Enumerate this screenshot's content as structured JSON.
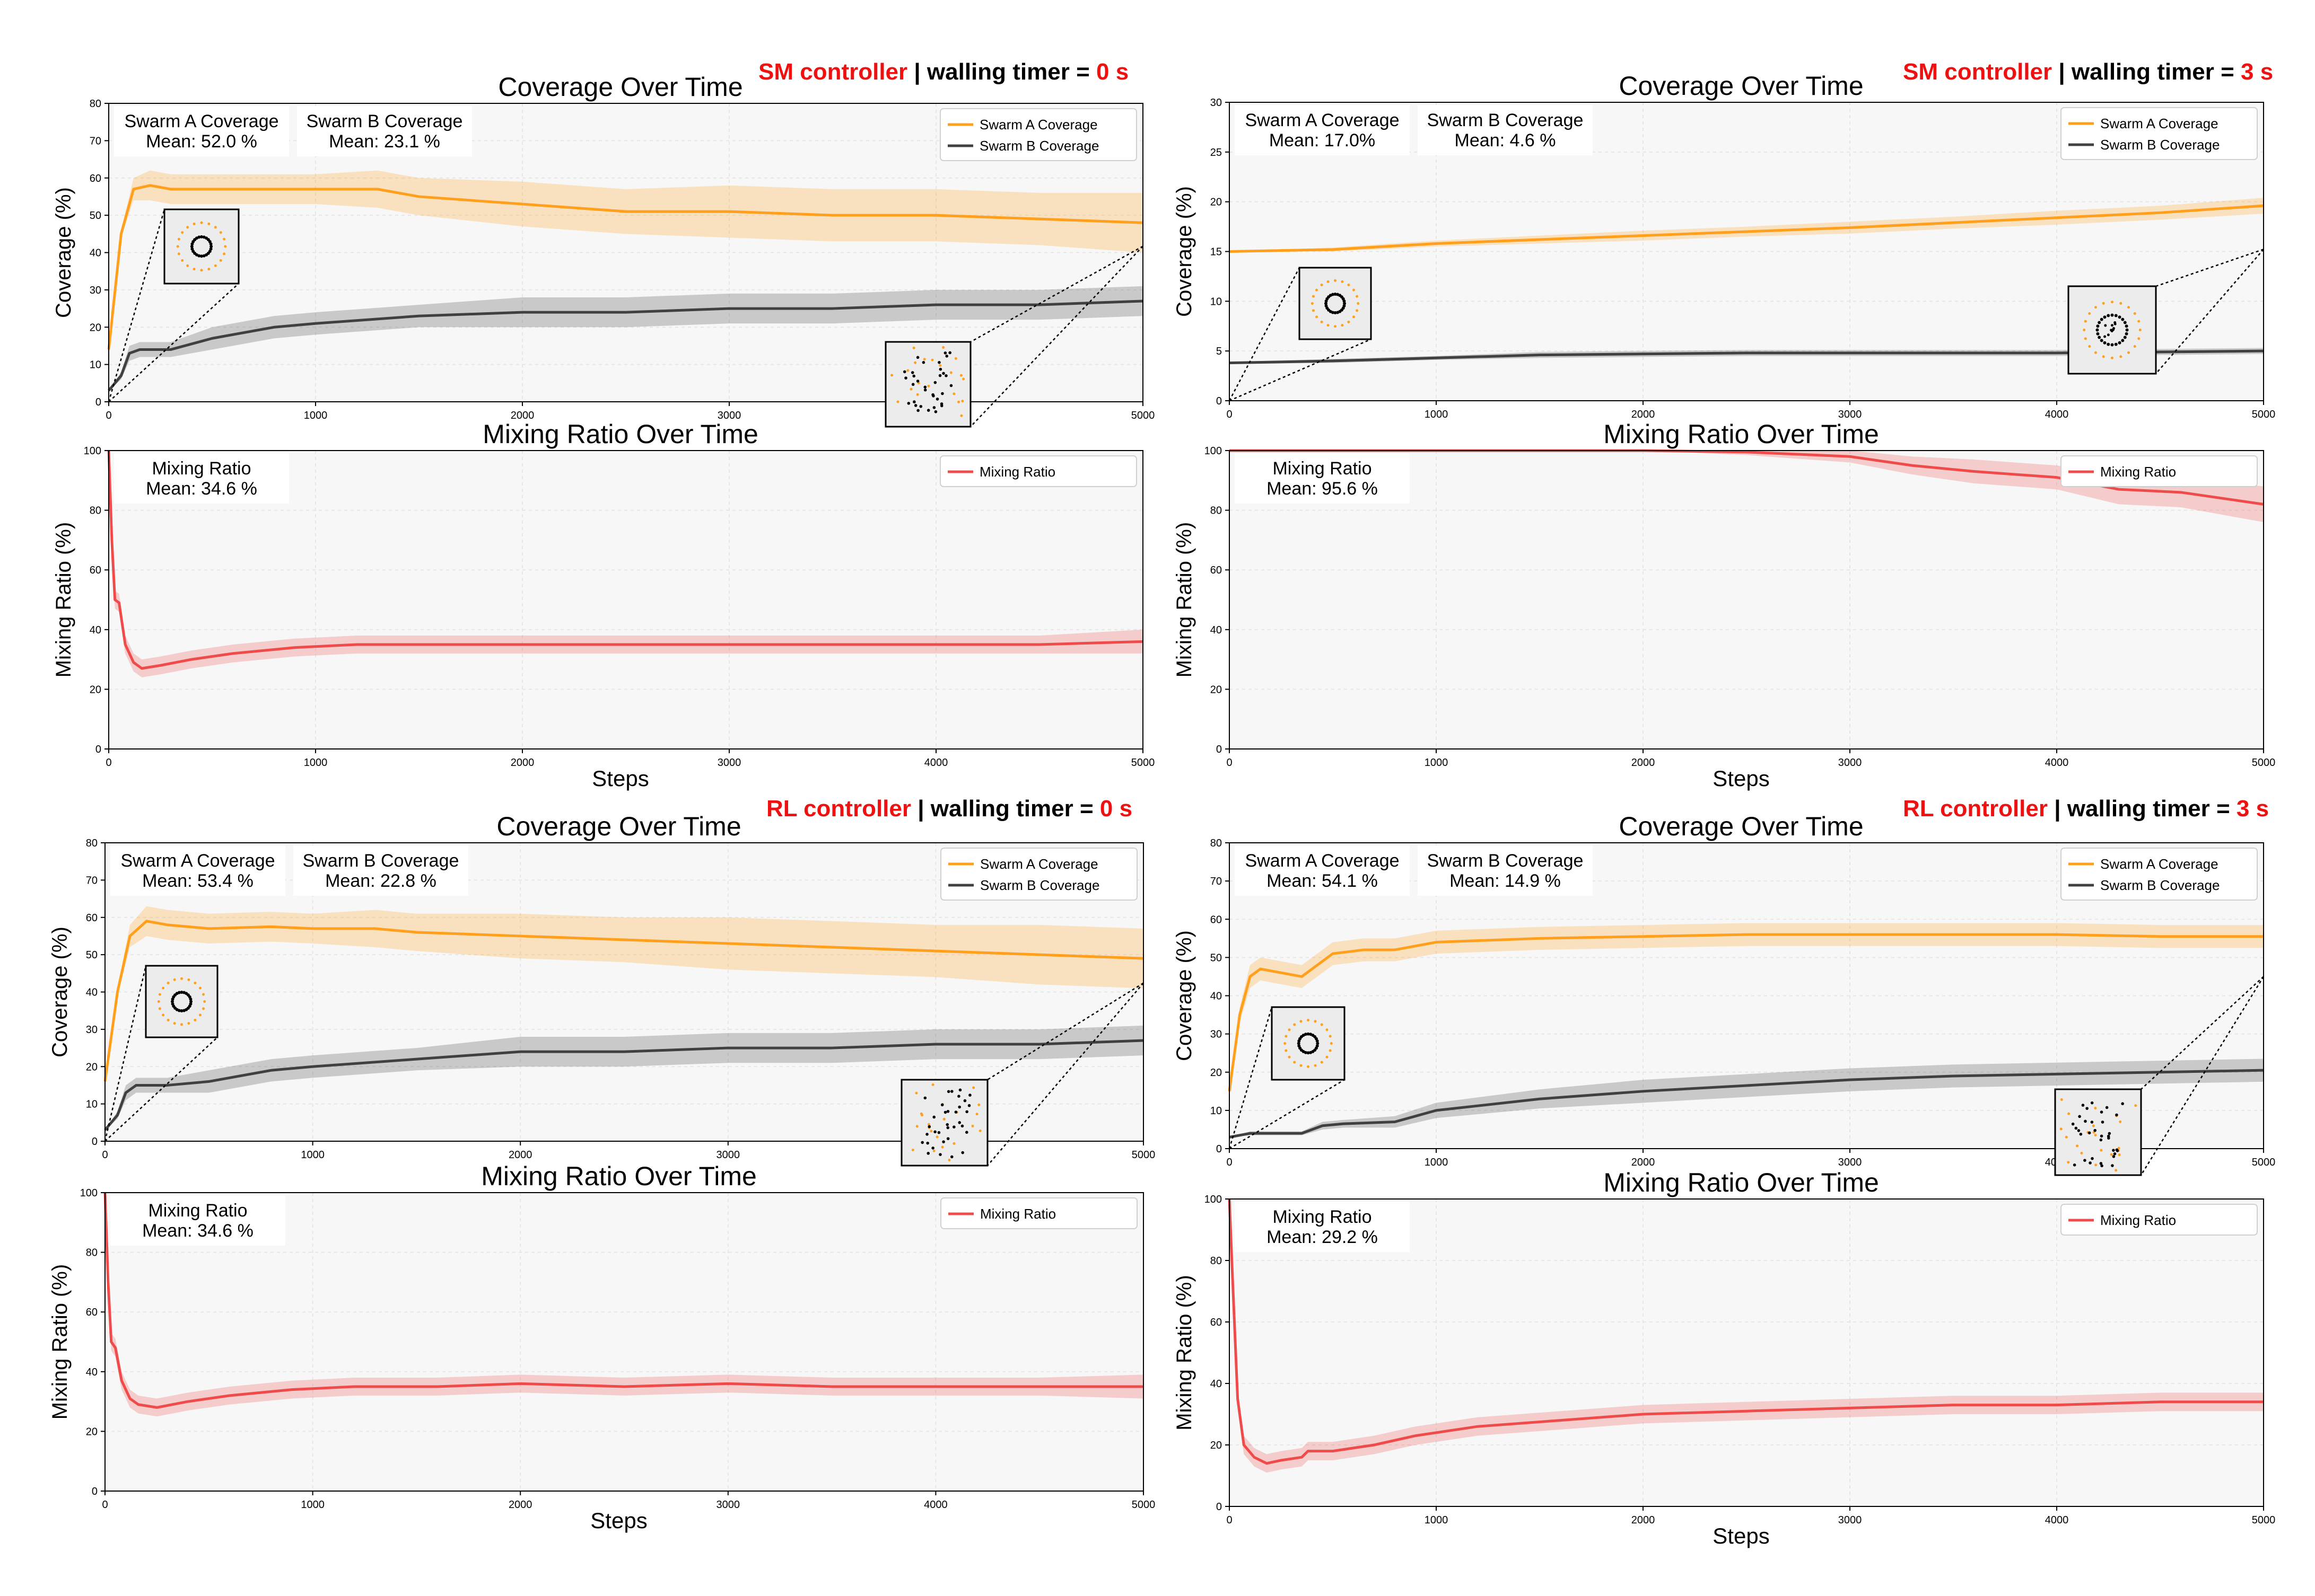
{
  "colors": {
    "swarm_a": "#ff9f1c",
    "swarm_b": "#404040",
    "mixing": "#ef4b4b",
    "header_red": "#ee1111",
    "header_black": "#000000",
    "plot_bg": "#f7f7f7",
    "grid": "#e6e6e6"
  },
  "chart_data": [
    {
      "type": "line",
      "panel": "top-left",
      "header": {
        "controller": "SM controller",
        "sep": " | walling timer = ",
        "value": "0 s"
      },
      "title": "Coverage Over Time",
      "xlabel": "",
      "ylabel": "Coverage (%)",
      "xlim": [
        0,
        5000
      ],
      "ylim": [
        0,
        80
      ],
      "xticks": [
        0,
        1000,
        2000,
        3000,
        4000,
        5000
      ],
      "yticks": [
        0,
        10,
        20,
        30,
        40,
        50,
        60,
        70,
        80
      ],
      "legend_position": "top-right",
      "stats": [
        {
          "label": "Swarm A Coverage",
          "mean": "Mean: 52.0 %"
        },
        {
          "label": "Swarm B Coverage",
          "mean": "Mean: 23.1 %"
        }
      ],
      "series": [
        {
          "name": "Swarm A Coverage",
          "color_key": "swarm_a",
          "x": [
            0,
            60,
            120,
            200,
            300,
            500,
            800,
            1000,
            1300,
            1500,
            2000,
            2500,
            3000,
            3500,
            4000,
            4500,
            5000
          ],
          "values": [
            14,
            45,
            57,
            58,
            57,
            57,
            57,
            57,
            57,
            55,
            53,
            51,
            51,
            50,
            50,
            49,
            48
          ],
          "band": [
            0,
            1,
            3,
            4,
            4,
            4,
            4,
            4,
            5,
            5,
            6,
            6,
            7,
            7,
            7,
            7,
            8
          ]
        },
        {
          "name": "Swarm B Coverage",
          "color_key": "swarm_b",
          "x": [
            0,
            60,
            100,
            150,
            200,
            300,
            500,
            800,
            1000,
            1500,
            2000,
            2500,
            3000,
            3500,
            4000,
            4500,
            5000
          ],
          "values": [
            3,
            7,
            13,
            14,
            14,
            14,
            17,
            20,
            21,
            23,
            24,
            24,
            25,
            25,
            26,
            26,
            27
          ],
          "band": [
            0,
            1,
            2,
            2,
            2,
            2,
            3,
            3,
            3,
            3,
            4,
            4,
            4,
            4,
            4,
            4,
            4
          ]
        }
      ],
      "insets": [
        {
          "type": "cluster",
          "at_x": 150
        },
        {
          "type": "scatter",
          "at_x": 5000
        }
      ]
    },
    {
      "type": "line",
      "panel": "top-left",
      "title": "Mixing Ratio Over Time",
      "xlabel": "Steps",
      "ylabel": "Mixing Ratio (%)",
      "xlim": [
        0,
        5000
      ],
      "ylim": [
        0,
        100
      ],
      "xticks": [
        0,
        1000,
        2000,
        3000,
        4000,
        5000
      ],
      "yticks": [
        0,
        20,
        40,
        60,
        80,
        100
      ],
      "legend_position": "top-right",
      "stats": [
        {
          "label": "Mixing Ratio",
          "mean": "Mean: 34.6 %"
        }
      ],
      "series": [
        {
          "name": "Mixing Ratio",
          "color_key": "mixing",
          "x": [
            0,
            15,
            30,
            50,
            80,
            120,
            160,
            250,
            400,
            600,
            900,
            1200,
            1600,
            2000,
            2500,
            3000,
            3500,
            4000,
            4500,
            5000
          ],
          "values": [
            100,
            70,
            50,
            49,
            35,
            29,
            27,
            28,
            30,
            32,
            34,
            35,
            35,
            35,
            35,
            35,
            35,
            35,
            35,
            36
          ],
          "band": [
            0,
            3,
            3,
            3,
            3,
            3,
            3,
            3,
            3,
            3,
            3,
            3,
            3,
            3,
            3,
            3,
            3,
            3,
            3,
            4
          ]
        }
      ]
    },
    {
      "type": "line",
      "panel": "top-right",
      "header": {
        "controller": "SM controller",
        "sep": " | walling timer = ",
        "value": "3 s"
      },
      "title": "Coverage Over Time",
      "xlabel": "",
      "ylabel": "Coverage (%)",
      "xlim": [
        0,
        5000
      ],
      "ylim": [
        0,
        30
      ],
      "xticks": [
        0,
        1000,
        2000,
        3000,
        4000,
        5000
      ],
      "yticks": [
        0,
        5,
        10,
        15,
        20,
        25,
        30
      ],
      "legend_position": "top-right",
      "stats": [
        {
          "label": "Swarm A Coverage",
          "mean": "Mean: 17.0%"
        },
        {
          "label": "Swarm B Coverage",
          "mean": "Mean: 4.6 %"
        }
      ],
      "series": [
        {
          "name": "Swarm A Coverage",
          "color_key": "swarm_a",
          "x": [
            0,
            500,
            1000,
            1500,
            2000,
            2500,
            3000,
            3500,
            4000,
            4500,
            5000
          ],
          "values": [
            15,
            15.2,
            15.8,
            16.2,
            16.6,
            17,
            17.4,
            17.9,
            18.4,
            18.9,
            19.6
          ],
          "band": [
            0,
            0.2,
            0.3,
            0.4,
            0.5,
            0.5,
            0.6,
            0.6,
            0.7,
            0.7,
            0.8
          ]
        },
        {
          "name": "Swarm B Coverage",
          "color_key": "swarm_b",
          "x": [
            0,
            500,
            1000,
            1500,
            2000,
            2500,
            3000,
            3500,
            4000,
            4500,
            5000
          ],
          "values": [
            3.8,
            4.0,
            4.3,
            4.6,
            4.7,
            4.8,
            4.8,
            4.8,
            4.8,
            4.9,
            5.0
          ],
          "band": [
            0.1,
            0.2,
            0.2,
            0.3,
            0.3,
            0.3,
            0.3,
            0.3,
            0.3,
            0.3,
            0.3
          ]
        }
      ],
      "insets": [
        {
          "type": "cluster",
          "at_x": 0
        },
        {
          "type": "ring-cluster",
          "at_x": 5000
        }
      ]
    },
    {
      "type": "line",
      "panel": "top-right",
      "title": "Mixing Ratio Over Time",
      "xlabel": "Steps",
      "ylabel": "Mixing Ratio (%)",
      "xlim": [
        0,
        5000
      ],
      "ylim": [
        0,
        100
      ],
      "xticks": [
        0,
        1000,
        2000,
        3000,
        4000,
        5000
      ],
      "yticks": [
        0,
        20,
        40,
        60,
        80,
        100
      ],
      "legend_position": "top-right",
      "stats": [
        {
          "label": "Mixing Ratio",
          "mean": "Mean: 95.6 %"
        }
      ],
      "series": [
        {
          "name": "Mixing Ratio",
          "color_key": "mixing",
          "x": [
            0,
            1000,
            2000,
            2500,
            3000,
            3300,
            3600,
            4000,
            4300,
            4600,
            5000
          ],
          "values": [
            100,
            100,
            100,
            99.5,
            98,
            95,
            93,
            91,
            87,
            86,
            82
          ],
          "band": [
            0,
            0,
            0,
            1,
            2,
            3,
            4,
            4,
            5,
            5,
            6
          ]
        }
      ]
    },
    {
      "type": "line",
      "panel": "bottom-left",
      "header": {
        "controller": "RL controller",
        "sep": " | walling timer = ",
        "value": "0 s"
      },
      "title": "Coverage Over Time",
      "xlabel": "",
      "ylabel": "Coverage (%)",
      "xlim": [
        0,
        5000
      ],
      "ylim": [
        0,
        80
      ],
      "xticks": [
        0,
        1000,
        2000,
        3000,
        4000,
        5000
      ],
      "yticks": [
        0,
        10,
        20,
        30,
        40,
        50,
        60,
        70,
        80
      ],
      "legend_position": "top-right",
      "stats": [
        {
          "label": "Swarm A Coverage",
          "mean": "Mean: 53.4 %"
        },
        {
          "label": "Swarm B Coverage",
          "mean": "Mean: 22.8 %"
        }
      ],
      "series": [
        {
          "name": "Swarm A Coverage",
          "color_key": "swarm_a",
          "x": [
            0,
            60,
            120,
            200,
            300,
            500,
            800,
            1000,
            1300,
            1500,
            2000,
            2500,
            3000,
            3500,
            4000,
            4500,
            5000
          ],
          "values": [
            16,
            40,
            55,
            59,
            58,
            57,
            57.5,
            57,
            57,
            56,
            55,
            54,
            53,
            52,
            51,
            50,
            49
          ],
          "band": [
            0,
            1,
            3,
            4,
            4,
            4,
            4,
            4,
            5,
            5,
            6,
            6,
            7,
            7,
            7,
            8,
            8
          ]
        },
        {
          "name": "Swarm B Coverage",
          "color_key": "swarm_b",
          "x": [
            0,
            60,
            100,
            150,
            200,
            300,
            500,
            800,
            1000,
            1500,
            2000,
            2500,
            3000,
            3500,
            4000,
            4500,
            5000
          ],
          "values": [
            3,
            7,
            13,
            15,
            15,
            15,
            16,
            19,
            20,
            22,
            24,
            24,
            25,
            25,
            26,
            26,
            27
          ],
          "band": [
            0,
            1,
            2,
            2,
            2,
            2,
            3,
            3,
            3,
            3,
            4,
            4,
            4,
            4,
            4,
            4,
            4
          ]
        }
      ],
      "insets": [
        {
          "type": "cluster",
          "at_x": 150
        },
        {
          "type": "scatter",
          "at_x": 5000
        }
      ]
    },
    {
      "type": "line",
      "panel": "bottom-left",
      "title": "Mixing Ratio Over Time",
      "xlabel": "Steps",
      "ylabel": "Mixing Ratio (%)",
      "xlim": [
        0,
        5000
      ],
      "ylim": [
        0,
        100
      ],
      "xticks": [
        0,
        1000,
        2000,
        3000,
        4000,
        5000
      ],
      "yticks": [
        0,
        20,
        40,
        60,
        80,
        100
      ],
      "legend_position": "top-right",
      "stats": [
        {
          "label": "Mixing Ratio",
          "mean": "Mean: 34.6 %"
        }
      ],
      "series": [
        {
          "name": "Mixing Ratio",
          "color_key": "mixing",
          "x": [
            0,
            15,
            30,
            50,
            80,
            120,
            160,
            250,
            400,
            600,
            900,
            1200,
            1600,
            2000,
            2500,
            3000,
            3500,
            4000,
            4500,
            5000
          ],
          "values": [
            100,
            70,
            50,
            48,
            37,
            31,
            29,
            28,
            30,
            32,
            34,
            35,
            35,
            36,
            35,
            36,
            35,
            35,
            35,
            35
          ],
          "band": [
            0,
            3,
            3,
            3,
            3,
            3,
            3,
            3,
            3,
            3,
            3,
            3,
            3,
            3,
            3,
            3,
            3,
            3,
            3,
            4
          ]
        }
      ]
    },
    {
      "type": "line",
      "panel": "bottom-right",
      "header": {
        "controller": "RL controller",
        "sep": " | walling timer = ",
        "value": "3 s"
      },
      "title": "Coverage Over Time",
      "xlabel": "",
      "ylabel": "Coverage (%)",
      "xlim": [
        0,
        5000
      ],
      "ylim": [
        0,
        80
      ],
      "xticks": [
        0,
        1000,
        2000,
        3000,
        4000,
        5000
      ],
      "yticks": [
        0,
        10,
        20,
        30,
        40,
        50,
        60,
        70,
        80
      ],
      "legend_position": "top-right",
      "stats": [
        {
          "label": "Swarm A Coverage",
          "mean": "Mean: 54.1 %"
        },
        {
          "label": "Swarm B Coverage",
          "mean": "Mean: 14.9 %"
        }
      ],
      "series": [
        {
          "name": "Swarm A Coverage",
          "color_key": "swarm_a",
          "x": [
            0,
            50,
            100,
            150,
            250,
            350,
            400,
            500,
            650,
            800,
            1000,
            1500,
            2000,
            2500,
            3000,
            3500,
            4000,
            4500,
            5000
          ],
          "values": [
            15,
            35,
            45,
            47,
            46,
            45,
            47,
            51,
            52,
            52,
            54,
            55,
            55.5,
            56,
            56,
            56,
            56,
            55.5,
            55.5
          ],
          "band": [
            0,
            2,
            3,
            3,
            3,
            3,
            3,
            3,
            3,
            3,
            3,
            3,
            3,
            3,
            3,
            3,
            3,
            3,
            3
          ]
        },
        {
          "name": "Swarm B Coverage",
          "color_key": "swarm_b",
          "x": [
            0,
            100,
            200,
            350,
            450,
            550,
            800,
            1000,
            1500,
            2000,
            2500,
            3000,
            3500,
            4000,
            4500,
            5000
          ],
          "values": [
            3,
            4,
            4,
            4,
            6,
            6.5,
            7,
            10,
            13,
            15,
            16.5,
            18,
            19,
            19.5,
            20,
            20.5
          ],
          "band": [
            0,
            0.5,
            0.5,
            0.5,
            1,
            1,
            1.5,
            2,
            2.5,
            3,
            3,
            3,
            3,
            3,
            3,
            3
          ]
        }
      ],
      "insets": [
        {
          "type": "cluster",
          "at_x": 0
        },
        {
          "type": "scatter",
          "at_x": 5000
        }
      ]
    },
    {
      "type": "line",
      "panel": "bottom-right",
      "title": "Mixing Ratio Over Time",
      "xlabel": "Steps",
      "ylabel": "Mixing Ratio (%)",
      "xlim": [
        0,
        5000
      ],
      "ylim": [
        0,
        100
      ],
      "xticks": [
        0,
        1000,
        2000,
        3000,
        4000,
        5000
      ],
      "yticks": [
        0,
        20,
        40,
        60,
        80,
        100
      ],
      "legend_position": "top-right",
      "stats": [
        {
          "label": "Mixing Ratio",
          "mean": "Mean: 29.2 %"
        }
      ],
      "series": [
        {
          "name": "Mixing Ratio",
          "color_key": "mixing",
          "x": [
            0,
            15,
            40,
            70,
            120,
            180,
            250,
            350,
            380,
            420,
            500,
            700,
            900,
            1200,
            1600,
            2000,
            2500,
            3000,
            3500,
            4000,
            4500,
            5000
          ],
          "values": [
            100,
            75,
            35,
            20,
            16,
            14,
            15,
            16,
            18,
            18,
            18,
            20,
            23,
            26,
            28,
            30,
            31,
            32,
            33,
            33,
            34,
            34
          ],
          "band": [
            0,
            3,
            3,
            3,
            3,
            3,
            3,
            3,
            3,
            3,
            3,
            3,
            3,
            3,
            3,
            3,
            3,
            3,
            3,
            3,
            3,
            3
          ]
        }
      ]
    }
  ]
}
